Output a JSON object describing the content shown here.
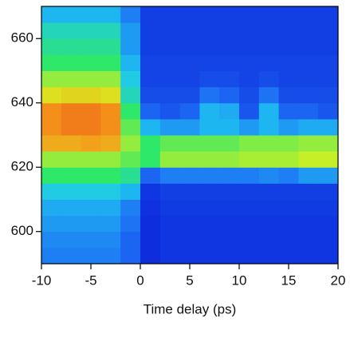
{
  "chart_data": {
    "type": "heatmap",
    "x_label": "Time delay  (ps)",
    "x": [
      -10,
      -8,
      -6,
      -4,
      -2,
      0,
      2,
      4,
      6,
      8,
      10,
      12,
      14,
      16,
      18,
      20
    ],
    "y": [
      590,
      595,
      600,
      605,
      610,
      615,
      620,
      625,
      630,
      635,
      640,
      645,
      650,
      655,
      660,
      665,
      670
    ],
    "z": [
      [
        0.2,
        0.2,
        0.2,
        0.2,
        0.15,
        0.03,
        0.05,
        0.05,
        0.05,
        0.05,
        0.05,
        0.05,
        0.05,
        0.05,
        0.05
      ],
      [
        0.22,
        0.22,
        0.22,
        0.22,
        0.15,
        0.03,
        0.05,
        0.05,
        0.05,
        0.05,
        0.05,
        0.05,
        0.05,
        0.05,
        0.05
      ],
      [
        0.25,
        0.25,
        0.25,
        0.25,
        0.18,
        0.03,
        0.05,
        0.05,
        0.05,
        0.05,
        0.05,
        0.05,
        0.05,
        0.05,
        0.05
      ],
      [
        0.28,
        0.28,
        0.28,
        0.28,
        0.2,
        0.04,
        0.06,
        0.06,
        0.06,
        0.06,
        0.06,
        0.06,
        0.06,
        0.06,
        0.06
      ],
      [
        0.35,
        0.35,
        0.35,
        0.35,
        0.3,
        0.05,
        0.07,
        0.07,
        0.07,
        0.07,
        0.07,
        0.07,
        0.07,
        0.07,
        0.07
      ],
      [
        0.5,
        0.5,
        0.5,
        0.5,
        0.45,
        0.15,
        0.2,
        0.2,
        0.2,
        0.2,
        0.2,
        0.22,
        0.2,
        0.25,
        0.25
      ],
      [
        0.6,
        0.6,
        0.6,
        0.6,
        0.55,
        0.5,
        0.6,
        0.6,
        0.6,
        0.6,
        0.62,
        0.62,
        0.62,
        0.65,
        0.65
      ],
      [
        0.8,
        0.8,
        0.82,
        0.8,
        0.6,
        0.5,
        0.55,
        0.55,
        0.55,
        0.55,
        0.58,
        0.58,
        0.58,
        0.6,
        0.6
      ],
      [
        0.85,
        0.88,
        0.88,
        0.85,
        0.55,
        0.3,
        0.25,
        0.25,
        0.3,
        0.3,
        0.25,
        0.3,
        0.25,
        0.28,
        0.28
      ],
      [
        0.85,
        0.88,
        0.88,
        0.85,
        0.5,
        0.15,
        0.12,
        0.15,
        0.3,
        0.28,
        0.12,
        0.3,
        0.15,
        0.15,
        0.12
      ],
      [
        0.7,
        0.72,
        0.72,
        0.7,
        0.4,
        0.1,
        0.1,
        0.1,
        0.18,
        0.15,
        0.1,
        0.18,
        0.1,
        0.1,
        0.1
      ],
      [
        0.6,
        0.6,
        0.6,
        0.6,
        0.35,
        0.08,
        0.08,
        0.08,
        0.1,
        0.1,
        0.08,
        0.1,
        0.08,
        0.08,
        0.08
      ],
      [
        0.5,
        0.5,
        0.5,
        0.5,
        0.3,
        0.08,
        0.08,
        0.08,
        0.08,
        0.08,
        0.08,
        0.08,
        0.08,
        0.08,
        0.08
      ],
      [
        0.45,
        0.45,
        0.45,
        0.45,
        0.25,
        0.07,
        0.07,
        0.07,
        0.07,
        0.07,
        0.07,
        0.07,
        0.07,
        0.07,
        0.07
      ],
      [
        0.4,
        0.4,
        0.4,
        0.4,
        0.25,
        0.07,
        0.07,
        0.07,
        0.07,
        0.07,
        0.07,
        0.07,
        0.07,
        0.07,
        0.07
      ],
      [
        0.3,
        0.3,
        0.3,
        0.3,
        0.2,
        0.07,
        0.07,
        0.07,
        0.07,
        0.07,
        0.07,
        0.07,
        0.07,
        0.07,
        0.07
      ]
    ],
    "colormap": [
      "#0a1fd8",
      "#1e6cf5",
      "#1ec8f0",
      "#2ee86a",
      "#d8f020",
      "#f59a1a",
      "#e8301a"
    ],
    "xlim": [
      -10,
      20
    ],
    "ylim": [
      590,
      670
    ],
    "xticks": [
      -10,
      -5,
      0,
      5,
      10,
      15,
      20
    ],
    "yticks": [
      600,
      620,
      640,
      660
    ]
  }
}
